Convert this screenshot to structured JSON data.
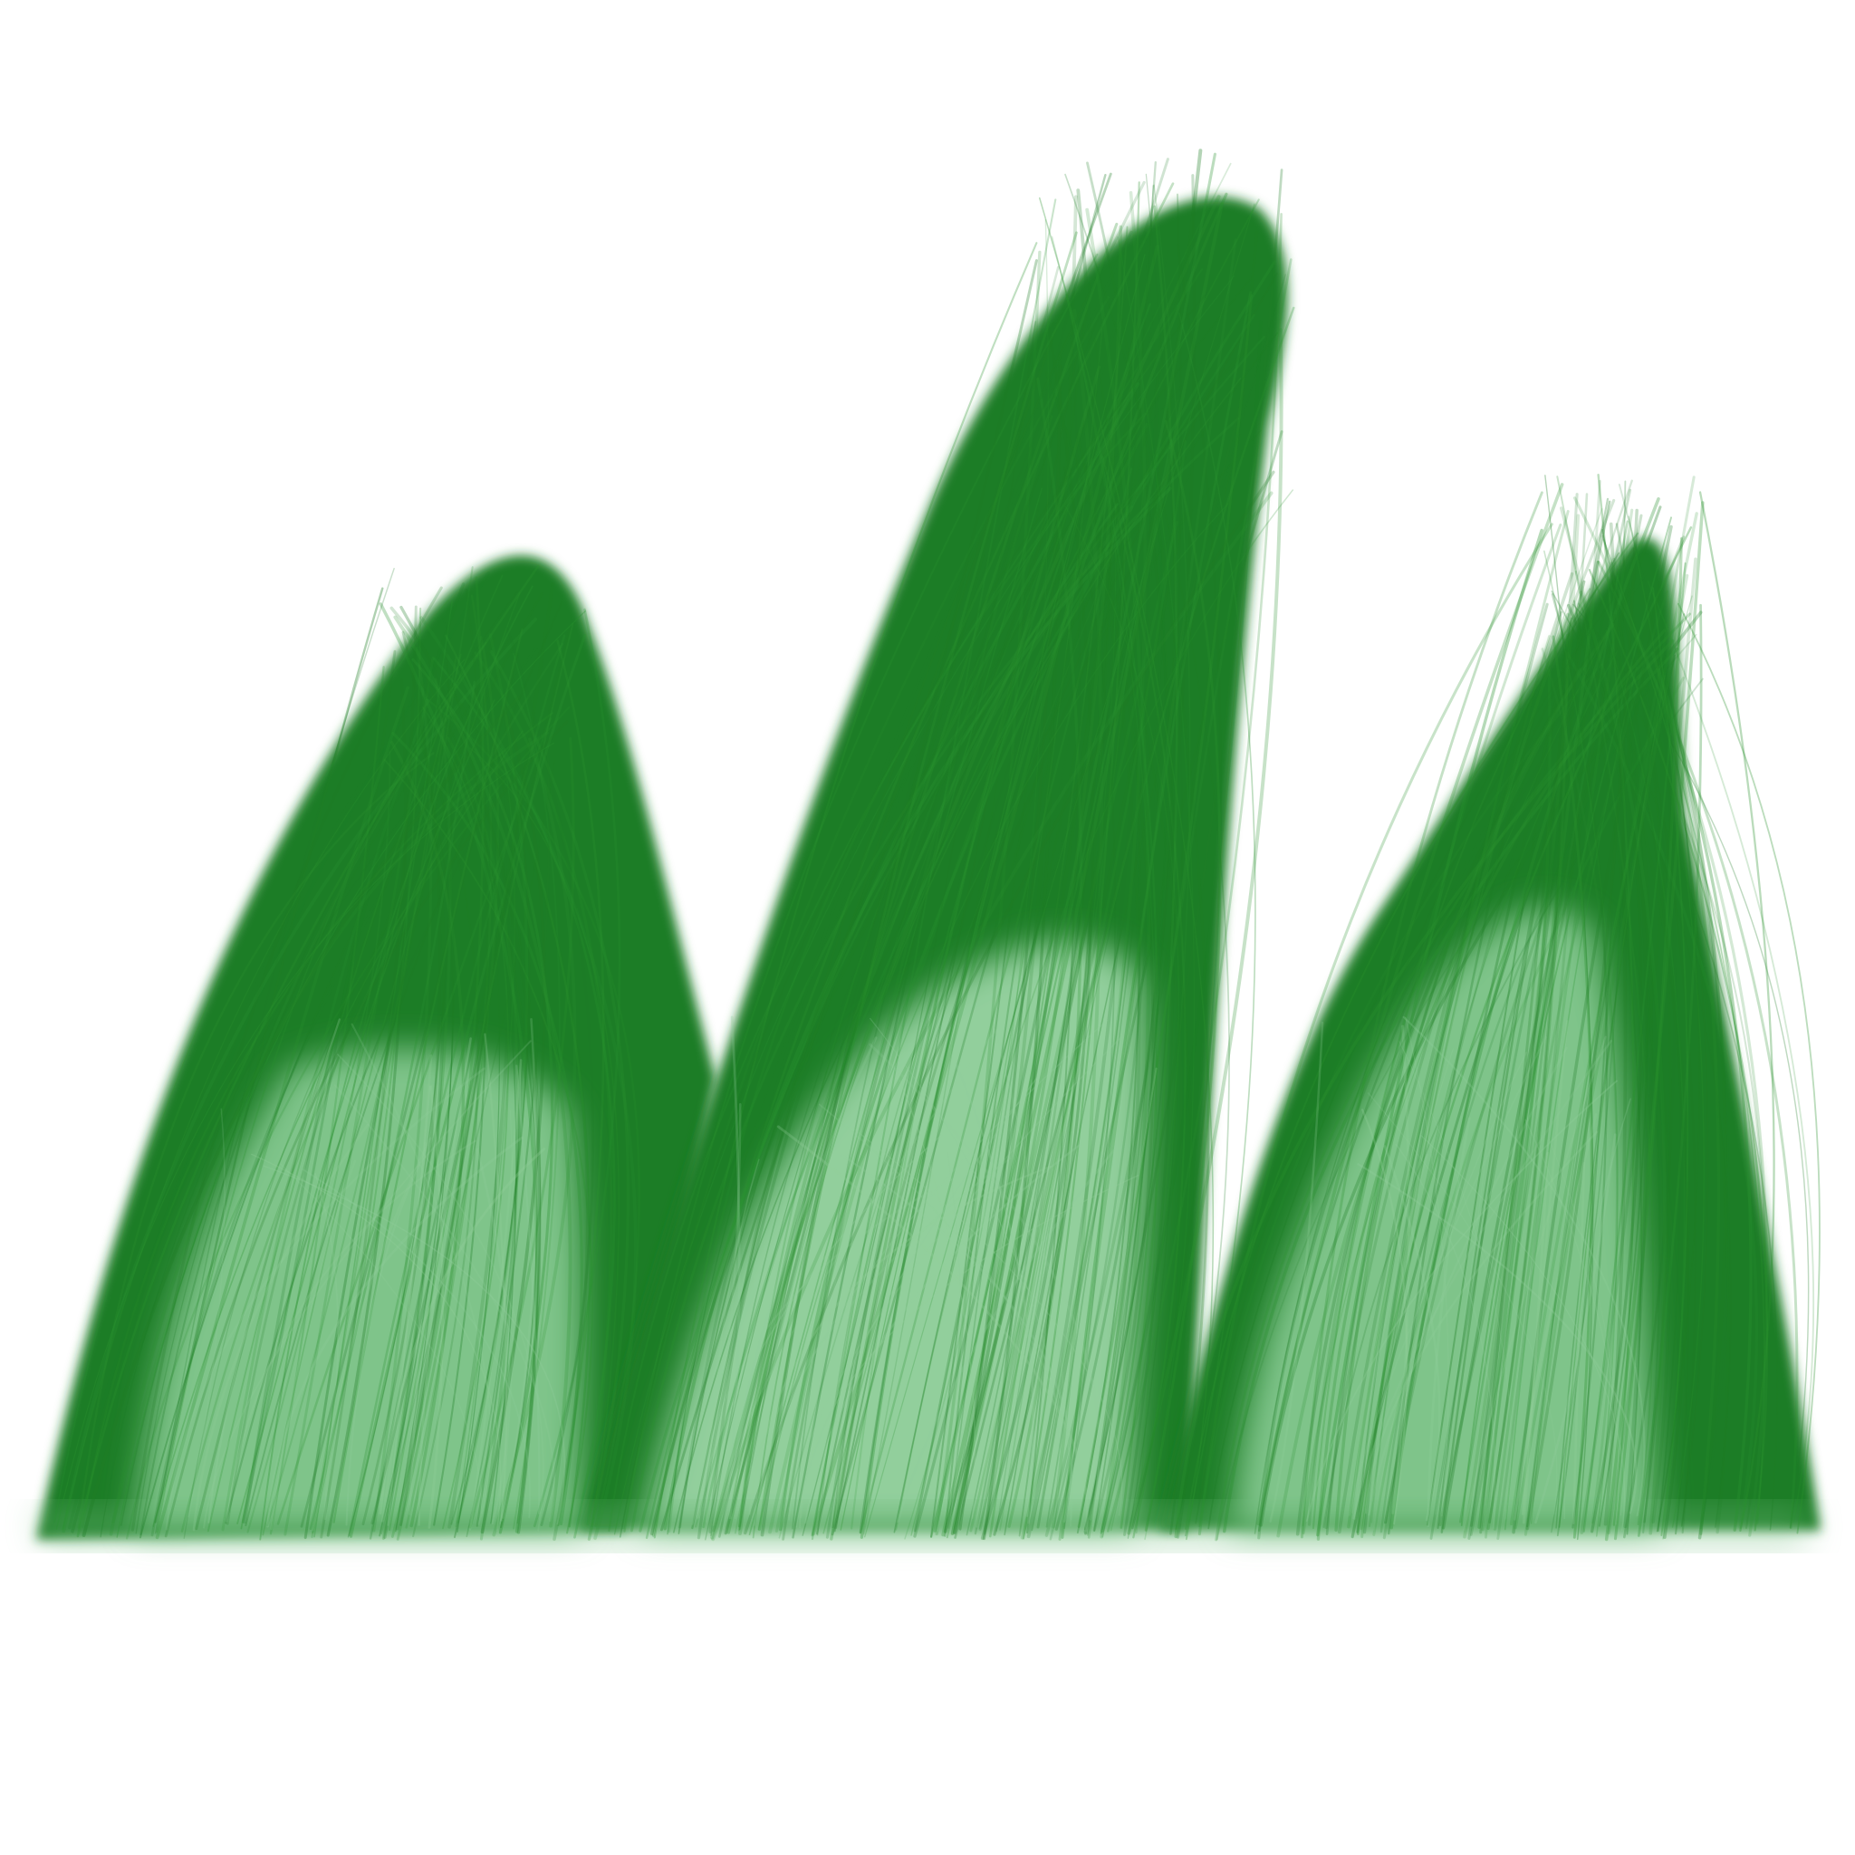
{
  "illustration": {
    "subject": "grass-tufts",
    "peaks": 3,
    "colors": {
      "background": "#ffffff",
      "dark_green": "#1e7d25",
      "mid_green": "#2a922f",
      "light_green": "#7fc48a",
      "pale_green": "#92cf9c"
    }
  }
}
